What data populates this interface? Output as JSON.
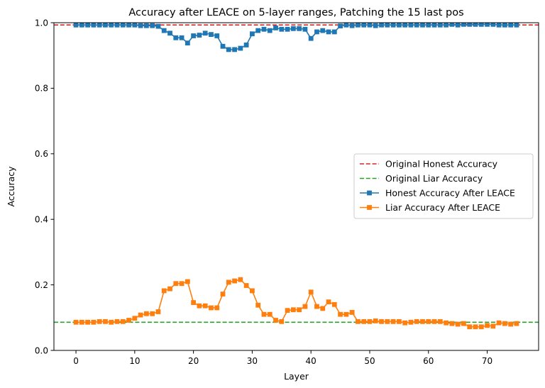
{
  "chart_data": {
    "type": "line",
    "title": "Accuracy after LEACE on 5-layer ranges, Patching the 15 last pos",
    "xlabel": "Layer",
    "ylabel": "Accuracy",
    "xlim": [
      -3.75,
      78.75
    ],
    "ylim": [
      0.0,
      1.0
    ],
    "xticks": [
      0,
      10,
      20,
      30,
      40,
      50,
      60,
      70
    ],
    "yticks": [
      0.0,
      0.2,
      0.4,
      0.6,
      0.8,
      1.0
    ],
    "xtick_labels": [
      "0",
      "10",
      "20",
      "30",
      "40",
      "50",
      "60",
      "70"
    ],
    "ytick_labels": [
      "0.0",
      "0.2",
      "0.4",
      "0.6",
      "0.8",
      "1.0"
    ],
    "grid": false,
    "legend_position": "center-right",
    "hlines": [
      {
        "name": "Original Honest Accuracy",
        "y": 0.993,
        "color": "#d62728",
        "style": "dashed"
      },
      {
        "name": "Original Liar Accuracy",
        "y": 0.086,
        "color": "#2ca02c",
        "style": "dashed"
      }
    ],
    "series": [
      {
        "name": "Honest Accuracy After LEACE",
        "color": "#1f77b4",
        "marker": "square",
        "x": [
          0,
          1,
          2,
          3,
          4,
          5,
          6,
          7,
          8,
          9,
          10,
          11,
          12,
          13,
          14,
          15,
          16,
          17,
          18,
          19,
          20,
          21,
          22,
          23,
          24,
          25,
          26,
          27,
          28,
          29,
          30,
          31,
          32,
          33,
          34,
          35,
          36,
          37,
          38,
          39,
          40,
          41,
          42,
          43,
          44,
          45,
          46,
          47,
          48,
          49,
          50,
          51,
          52,
          53,
          54,
          55,
          56,
          57,
          58,
          59,
          60,
          61,
          62,
          63,
          64,
          65,
          66,
          67,
          68,
          69,
          70,
          71,
          72,
          73,
          74,
          75
        ],
        "values": [
          0.993,
          0.993,
          0.993,
          0.993,
          0.993,
          0.993,
          0.993,
          0.993,
          0.993,
          0.993,
          0.993,
          0.991,
          0.991,
          0.991,
          0.989,
          0.976,
          0.968,
          0.954,
          0.954,
          0.938,
          0.96,
          0.962,
          0.968,
          0.964,
          0.96,
          0.928,
          0.918,
          0.918,
          0.922,
          0.932,
          0.966,
          0.976,
          0.98,
          0.976,
          0.984,
          0.98,
          0.98,
          0.982,
          0.982,
          0.98,
          0.952,
          0.972,
          0.976,
          0.972,
          0.972,
          0.99,
          0.993,
          0.991,
          0.993,
          0.993,
          0.993,
          0.991,
          0.993,
          0.993,
          0.993,
          0.993,
          0.993,
          0.993,
          0.993,
          0.993,
          0.993,
          0.993,
          0.993,
          0.993,
          0.995,
          0.993,
          0.995,
          0.995,
          0.995,
          0.995,
          0.995,
          0.995,
          0.993,
          0.993,
          0.993,
          0.993
        ]
      },
      {
        "name": "Liar Accuracy After LEACE",
        "color": "#ff7f0e",
        "marker": "square",
        "x": [
          0,
          1,
          2,
          3,
          4,
          5,
          6,
          7,
          8,
          9,
          10,
          11,
          12,
          13,
          14,
          15,
          16,
          17,
          18,
          19,
          20,
          21,
          22,
          23,
          24,
          25,
          26,
          27,
          28,
          29,
          30,
          31,
          32,
          33,
          34,
          35,
          36,
          37,
          38,
          39,
          40,
          41,
          42,
          43,
          44,
          45,
          46,
          47,
          48,
          49,
          50,
          51,
          52,
          53,
          54,
          55,
          56,
          57,
          58,
          59,
          60,
          61,
          62,
          63,
          64,
          65,
          66,
          67,
          68,
          69,
          70,
          71,
          72,
          73,
          74,
          75
        ],
        "values": [
          0.086,
          0.086,
          0.086,
          0.086,
          0.088,
          0.088,
          0.086,
          0.088,
          0.088,
          0.092,
          0.098,
          0.108,
          0.112,
          0.112,
          0.118,
          0.182,
          0.188,
          0.204,
          0.204,
          0.21,
          0.146,
          0.136,
          0.136,
          0.13,
          0.13,
          0.172,
          0.208,
          0.212,
          0.216,
          0.198,
          0.182,
          0.138,
          0.11,
          0.11,
          0.092,
          0.088,
          0.122,
          0.124,
          0.124,
          0.134,
          0.178,
          0.134,
          0.128,
          0.148,
          0.14,
          0.11,
          0.11,
          0.116,
          0.088,
          0.088,
          0.088,
          0.09,
          0.088,
          0.088,
          0.088,
          0.088,
          0.084,
          0.086,
          0.088,
          0.088,
          0.088,
          0.088,
          0.088,
          0.084,
          0.082,
          0.08,
          0.082,
          0.072,
          0.072,
          0.072,
          0.076,
          0.074,
          0.084,
          0.082,
          0.08,
          0.082
        ]
      }
    ]
  }
}
